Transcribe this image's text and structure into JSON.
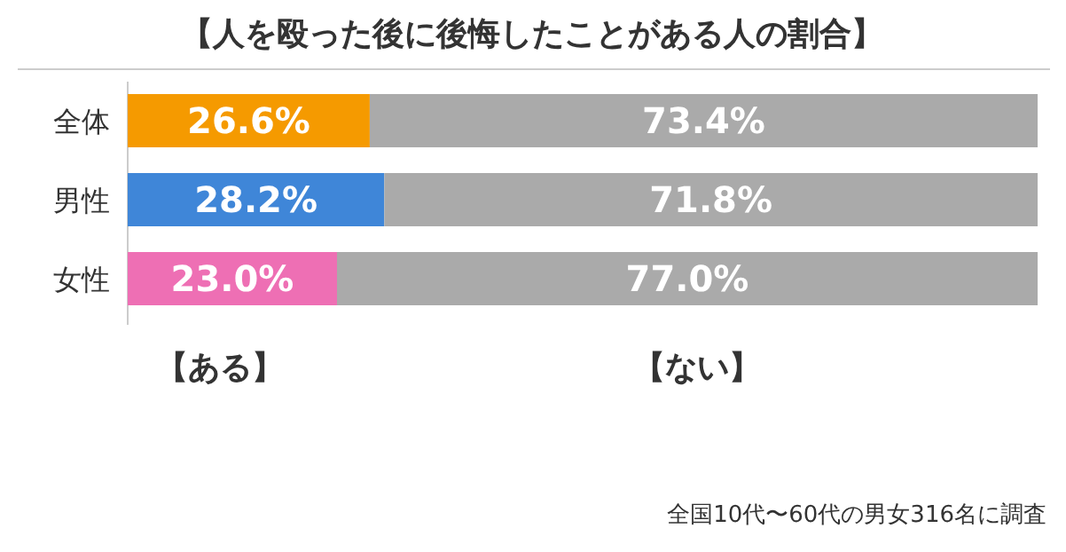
{
  "chart_data": {
    "type": "bar",
    "orientation": "horizontal",
    "stacked": true,
    "title": "【人を殴った後に後悔したことがある人の割合】",
    "categories": [
      "全体",
      "男性",
      "女性"
    ],
    "xlim": [
      0,
      100
    ],
    "legend": "bottom",
    "series": [
      {
        "name": "【ある】",
        "colors": [
          "#f59a00",
          "#3f86d8",
          "#ee6fb4"
        ],
        "values": [
          26.6,
          28.2,
          23.0
        ],
        "value_labels": [
          "26.6%",
          "28.2%",
          "23.0%"
        ]
      },
      {
        "name": "【ない】",
        "color": "#aaaaaa",
        "values": [
          73.4,
          71.8,
          77.0
        ],
        "value_labels": [
          "73.4%",
          "71.8%",
          "77.0%"
        ]
      }
    ],
    "annotations": [
      "全国10代〜60代の男女316名に調査"
    ]
  }
}
